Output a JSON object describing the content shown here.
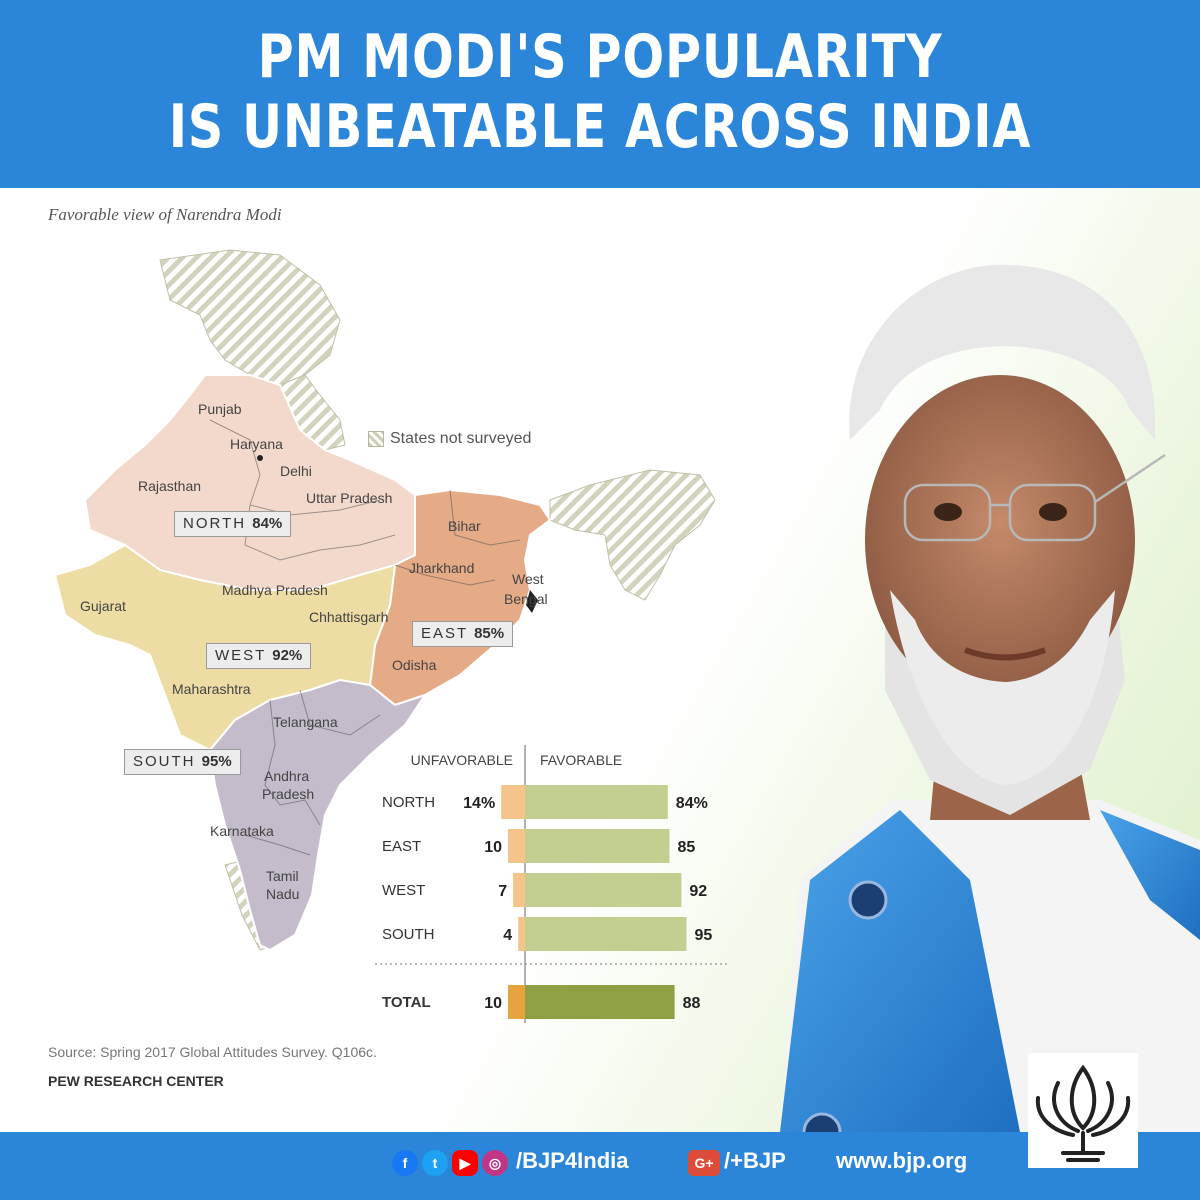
{
  "header": {
    "title_line1": "PM MODI'S POPULARITY",
    "title_line2": "IS UNBEATABLE ACROSS INDIA"
  },
  "map": {
    "subtitle": "Favorable view of Narendra Modi",
    "legend_label": "States not surveyed",
    "regions": [
      {
        "name": "NORTH",
        "value": "84%",
        "color": "#f3d9cb"
      },
      {
        "name": "EAST",
        "value": "85%",
        "color": "#e5aa86"
      },
      {
        "name": "WEST",
        "value": "92%",
        "color": "#eddca3"
      },
      {
        "name": "SOUTH",
        "value": "95%",
        "color": "#c4bccb"
      }
    ],
    "states": [
      "Punjab",
      "Haryana",
      "Delhi",
      "Rajasthan",
      "Uttar Pradesh",
      "Bihar",
      "Jharkhand",
      "West",
      "Bengal",
      "Gujarat",
      "Madhya Pradesh",
      "Chhattisgarh",
      "Odisha",
      "Maharashtra",
      "Telangana",
      "Andhra",
      "Pradesh",
      "Karnataka",
      "Tamil",
      "Nadu"
    ],
    "hatch_color": "#cfcfb8"
  },
  "chart_data": {
    "type": "bar",
    "categories": [
      "NORTH",
      "EAST",
      "WEST",
      "SOUTH",
      "TOTAL"
    ],
    "series": [
      {
        "name": "UNFAVORABLE",
        "values": [
          14,
          10,
          7,
          4,
          10
        ]
      },
      {
        "name": "FAVORABLE",
        "values": [
          84,
          85,
          92,
          95,
          88
        ]
      }
    ],
    "value_labels": {
      "unfavorable": [
        "14%",
        "10",
        "7",
        "4",
        "10"
      ],
      "favorable": [
        "84%",
        "85",
        "92",
        "95",
        "88"
      ]
    },
    "colors": {
      "unfavorable": "#f5c48a",
      "unfavorable_total": "#e6a340",
      "favorable": "#c3cf91",
      "favorable_total": "#8ea043"
    }
  },
  "source": {
    "text": "Source: Spring 2017 Global Attitudes Survey. Q106c.",
    "org": "PEW RESEARCH CENTER"
  },
  "footer": {
    "handle": "/BJP4India",
    "gplus": "/+BJP",
    "website": "www.bjp.org",
    "icons": [
      "facebook-icon",
      "twitter-icon",
      "youtube-icon",
      "instagram-icon",
      "google-plus-icon"
    ]
  },
  "colors": {
    "brand_blue": "#2b86d9",
    "accent_orange": "#f4a13a",
    "accent_green": "#4f8a2b"
  }
}
